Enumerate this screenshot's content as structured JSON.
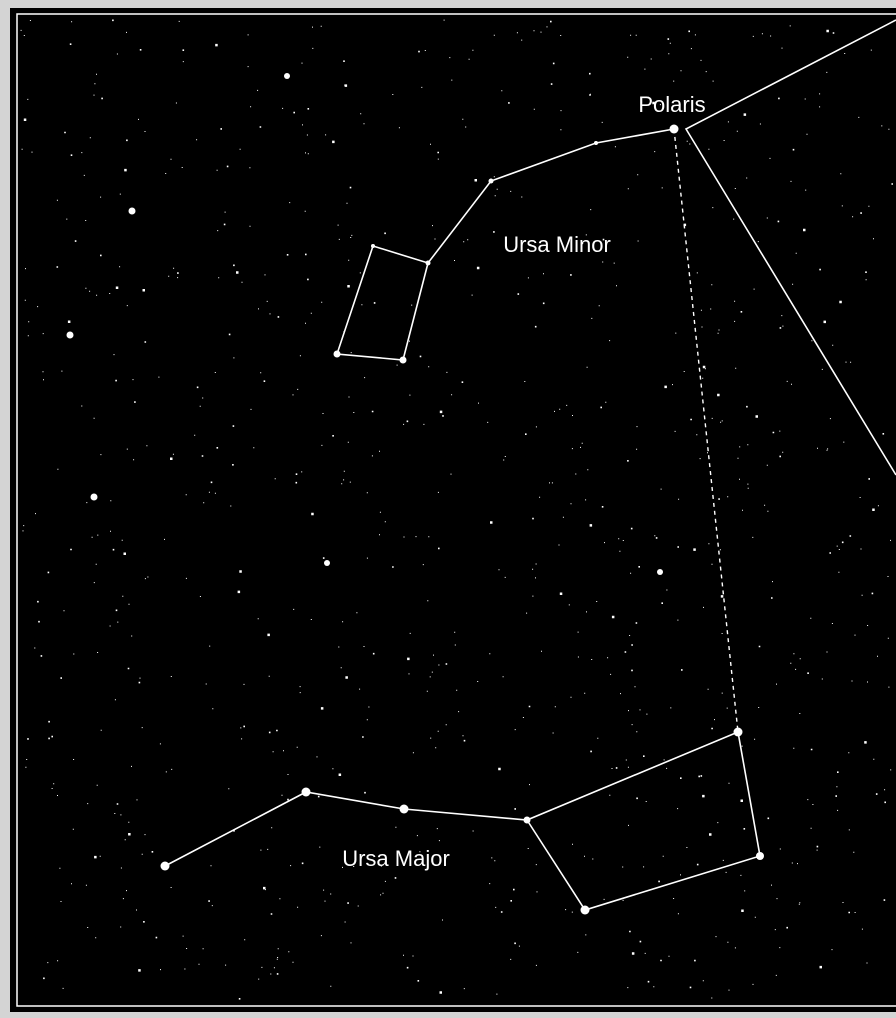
{
  "labels": {
    "polaris": "Polaris",
    "ursa_minor": "Ursa Minor",
    "ursa_major": "Ursa Major"
  }
}
